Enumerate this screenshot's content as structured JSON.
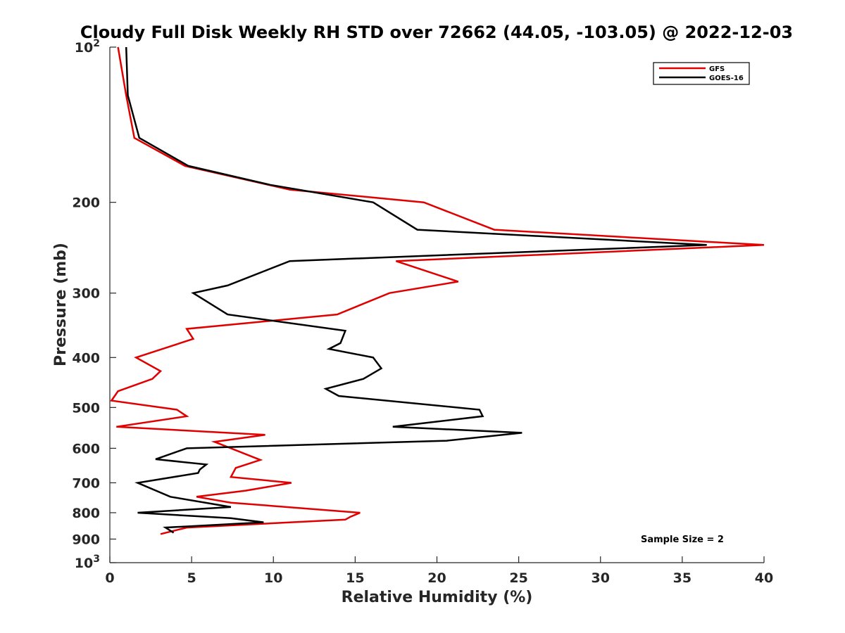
{
  "chart_data": {
    "type": "line",
    "title": "Cloudy Full Disk Weekly RH STD over 72662 (44.05, -103.05) @ 2022-12-03",
    "xlabel": "Relative Humidity (%)",
    "ylabel": "Pressure (mb)",
    "xlim": [
      0,
      40
    ],
    "ylim": [
      100,
      1000
    ],
    "yscale": "log",
    "y_reversed": true,
    "grid": false,
    "legend_placement": "top-right",
    "x_ticks": [
      "0",
      "5",
      "10",
      "15",
      "20",
      "25",
      "30",
      "35",
      "40"
    ],
    "y_ticks": [
      {
        "value": 100,
        "label": "10",
        "sup": "2"
      },
      {
        "value": 200,
        "label": "200"
      },
      {
        "value": 300,
        "label": "300"
      },
      {
        "value": 400,
        "label": "400"
      },
      {
        "value": 500,
        "label": "500"
      },
      {
        "value": 600,
        "label": "600"
      },
      {
        "value": 700,
        "label": "700"
      },
      {
        "value": 800,
        "label": "800"
      },
      {
        "value": 900,
        "label": "900"
      },
      {
        "value": 1000,
        "label": "10",
        "sup": "3"
      }
    ],
    "annotation": "Sample Size = 2",
    "series": [
      {
        "name": "GFS",
        "color": "#e00000",
        "x": [
          0.5,
          1.0,
          1.5,
          4.6,
          11.0,
          19.2,
          23.5,
          40.0,
          17.5,
          21.3,
          17.1,
          13.9,
          4.7,
          5.1,
          1.6,
          3.1,
          2.6,
          0.5,
          0.1,
          4.1,
          4.7,
          0.4,
          9.5,
          6.4,
          9.2,
          7.7,
          7.4,
          11.1,
          8.3,
          5.3,
          7.4,
          15.3,
          14.7,
          14.4,
          4.7,
          3.1
        ],
        "y": [
          100,
          124,
          150,
          170,
          189,
          200,
          226,
          242,
          260,
          285,
          300,
          330,
          352,
          368,
          400,
          425,
          440,
          465,
          485,
          505,
          520,
          545,
          565,
          583,
          632,
          655,
          682,
          700,
          725,
          745,
          765,
          800,
          815,
          825,
          855,
          880
        ]
      },
      {
        "name": "GOES-16",
        "color": "#000000",
        "x": [
          1.0,
          1.1,
          1.8,
          4.8,
          9.8,
          16.1,
          18.8,
          36.5,
          11.0,
          7.2,
          5.1,
          7.2,
          14.4,
          14.1,
          13.4,
          16.1,
          16.6,
          15.5,
          13.2,
          14.0,
          22.6,
          22.8,
          17.3,
          25.2,
          20.6,
          4.7,
          2.8,
          5.9,
          5.5,
          5.4,
          1.7,
          3.7,
          7.4,
          1.7,
          7.4,
          9.4,
          3.4,
          3.9
        ],
        "y": [
          100,
          124,
          150,
          170,
          185,
          200,
          226,
          242,
          260,
          290,
          300,
          330,
          355,
          375,
          385,
          400,
          420,
          440,
          460,
          475,
          505,
          520,
          545,
          560,
          580,
          600,
          630,
          645,
          660,
          670,
          700,
          745,
          780,
          800,
          820,
          835,
          855,
          875
        ]
      }
    ]
  }
}
